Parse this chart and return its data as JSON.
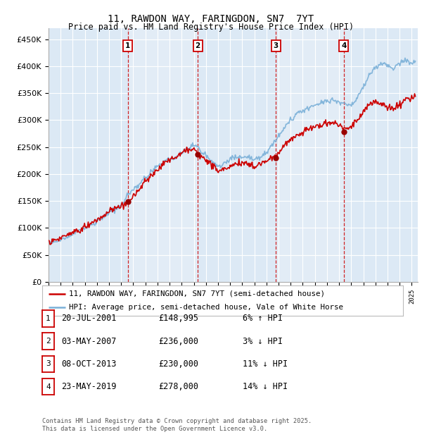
{
  "title": "11, RAWDON WAY, FARINGDON, SN7  7YT",
  "subtitle": "Price paid vs. HM Land Registry's House Price Index (HPI)",
  "ylim": [
    0,
    470000
  ],
  "xlim_start": 1995.0,
  "xlim_end": 2025.5,
  "background_color": "#dce9f5",
  "grid_color": "#ffffff",
  "hpi_color": "#7ab0d8",
  "price_color": "#cc0000",
  "transaction_line_color": "#cc0000",
  "footer_text": "Contains HM Land Registry data © Crown copyright and database right 2025.\nThis data is licensed under the Open Government Licence v3.0.",
  "legend_entries": [
    "11, RAWDON WAY, FARINGDON, SN7 7YT (semi-detached house)",
    "HPI: Average price, semi-detached house, Vale of White Horse"
  ],
  "transactions": [
    {
      "num": 1,
      "date": "20-JUL-2001",
      "price": "£148,995",
      "label": "6% ↑ HPI",
      "year": 2001.55,
      "price_val": 148995
    },
    {
      "num": 2,
      "date": "03-MAY-2007",
      "price": "£236,000",
      "label": "3% ↓ HPI",
      "year": 2007.33,
      "price_val": 236000
    },
    {
      "num": 3,
      "date": "08-OCT-2013",
      "price": "£230,000",
      "label": "11% ↓ HPI",
      "year": 2013.77,
      "price_val": 230000
    },
    {
      "num": 4,
      "date": "23-MAY-2019",
      "price": "£278,000",
      "label": "14% ↓ HPI",
      "year": 2019.39,
      "price_val": 278000
    }
  ]
}
